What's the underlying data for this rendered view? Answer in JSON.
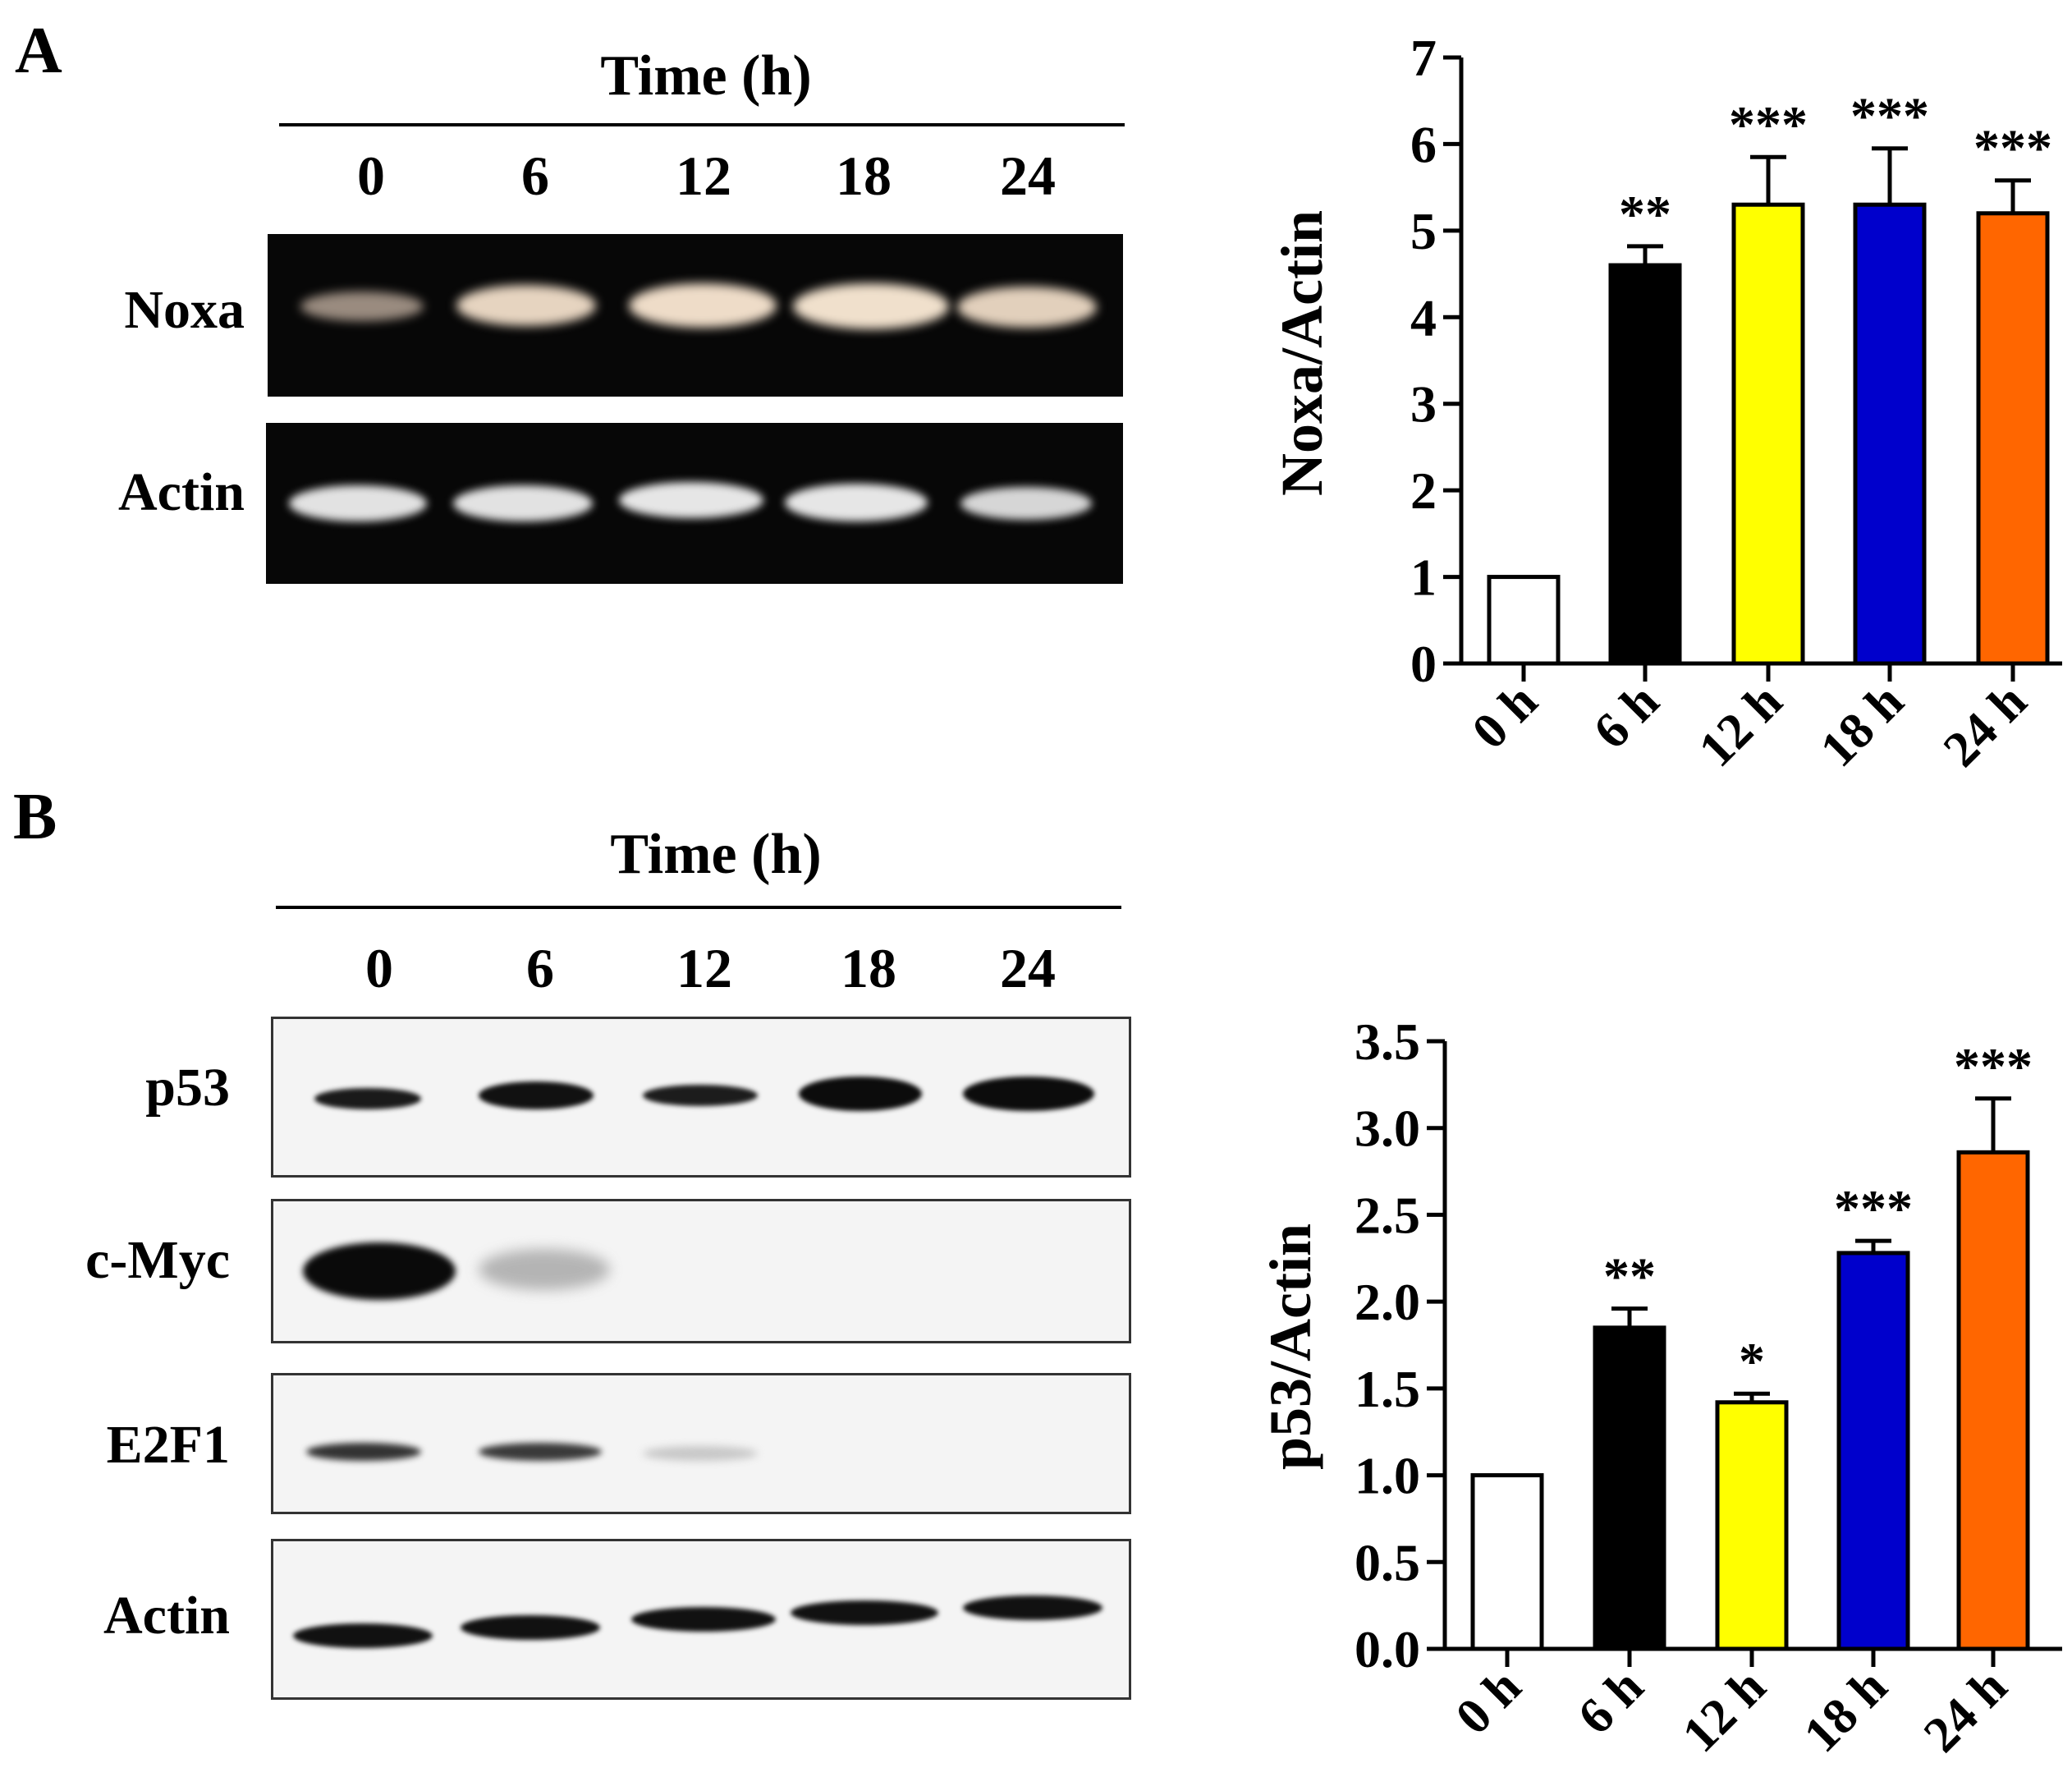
{
  "panels": [
    {
      "letter": "A",
      "time_title": "Time (h)",
      "lanes": [
        "0",
        "6",
        "12",
        "18",
        "24"
      ],
      "rows": [
        "Noxa",
        "Actin"
      ]
    },
    {
      "letter": "B",
      "time_title": "Time (h)",
      "lanes": [
        "0",
        "6",
        "12",
        "18",
        "24"
      ],
      "rows": [
        "p53",
        "c-Myc",
        "E2F1",
        "Actin"
      ]
    }
  ],
  "chart_data": [
    {
      "type": "bar",
      "categories": [
        "0 h",
        "6 h",
        "12 h",
        "18 h",
        "24 h"
      ],
      "values": [
        1.0,
        4.6,
        5.3,
        5.3,
        5.2
      ],
      "errors": [
        0,
        0.22,
        0.55,
        0.65,
        0.38
      ],
      "significance": [
        "",
        "**",
        "***",
        "***",
        "***"
      ],
      "colors": [
        "#ffffff",
        "#000000",
        "#ffff00",
        "#0000cc",
        "#ff6600"
      ],
      "ylabel": "Noxa/Actin",
      "ylim": [
        0,
        7
      ],
      "yticks": [
        "0",
        "1",
        "2",
        "3",
        "4",
        "5",
        "6",
        "7"
      ]
    },
    {
      "type": "bar",
      "categories": [
        "0 h",
        "6 h",
        "12 h",
        "18 h",
        "24 h"
      ],
      "values": [
        1.0,
        1.85,
        1.42,
        2.28,
        2.86
      ],
      "errors": [
        0,
        0.11,
        0.05,
        0.07,
        0.31
      ],
      "significance": [
        "",
        "**",
        "*",
        "***",
        "***"
      ],
      "colors": [
        "#ffffff",
        "#000000",
        "#ffff00",
        "#0000cc",
        "#ff6600"
      ],
      "ylabel": "p53/Actin",
      "ylim": [
        0,
        3.5
      ],
      "yticks": [
        "0.0",
        "0.5",
        "1.0",
        "1.5",
        "2.0",
        "2.5",
        "3.0",
        "3.5"
      ]
    }
  ]
}
